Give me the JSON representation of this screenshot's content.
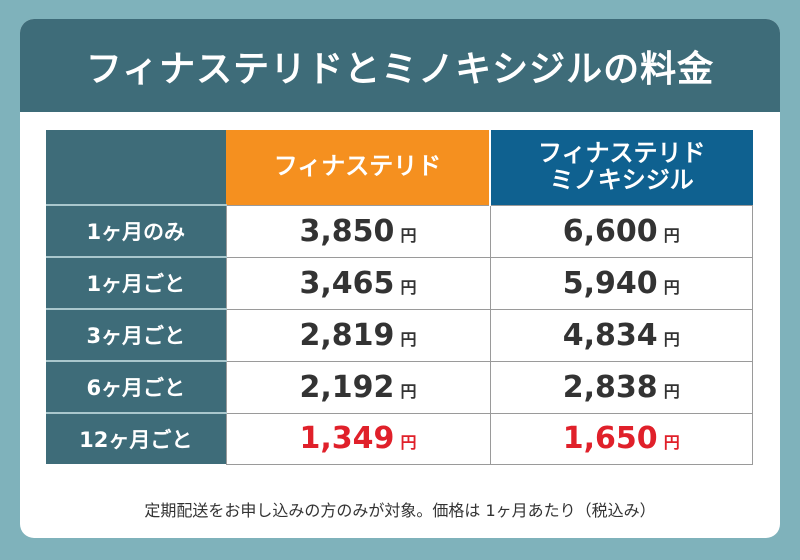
{
  "title": "フィナステリドとミノキシジルの料金",
  "columns": [
    "",
    "フィナステリド",
    "フィナステリド\nミノキシジル"
  ],
  "columns_lines": {
    "combo_1": "フィナステリド",
    "combo_2": "ミノキシジル"
  },
  "currency": "円",
  "rows": [
    {
      "label": "1ヶ月のみ",
      "finasteride": "3,850",
      "combo": "6,600",
      "highlight": false
    },
    {
      "label": "1ヶ月ごと",
      "finasteride": "3,465",
      "combo": "5,940",
      "highlight": false
    },
    {
      "label": "3ヶ月ごと",
      "finasteride": "2,819",
      "combo": "4,834",
      "highlight": false
    },
    {
      "label": "6ヶ月ごと",
      "finasteride": "2,192",
      "combo": "2,838",
      "highlight": false
    },
    {
      "label": "12ヶ月ごと",
      "finasteride": "1,349",
      "combo": "1,650",
      "highlight": true
    }
  ],
  "note": "定期配送をお申し込みの方のみが対象。価格は 1ヶ月あたり（税込み）",
  "colors": {
    "background": "#7fb2bb",
    "header": "#3e6c79",
    "finasteride": "#f5901f",
    "combo": "#0f6190",
    "highlight": "#e0202a"
  }
}
